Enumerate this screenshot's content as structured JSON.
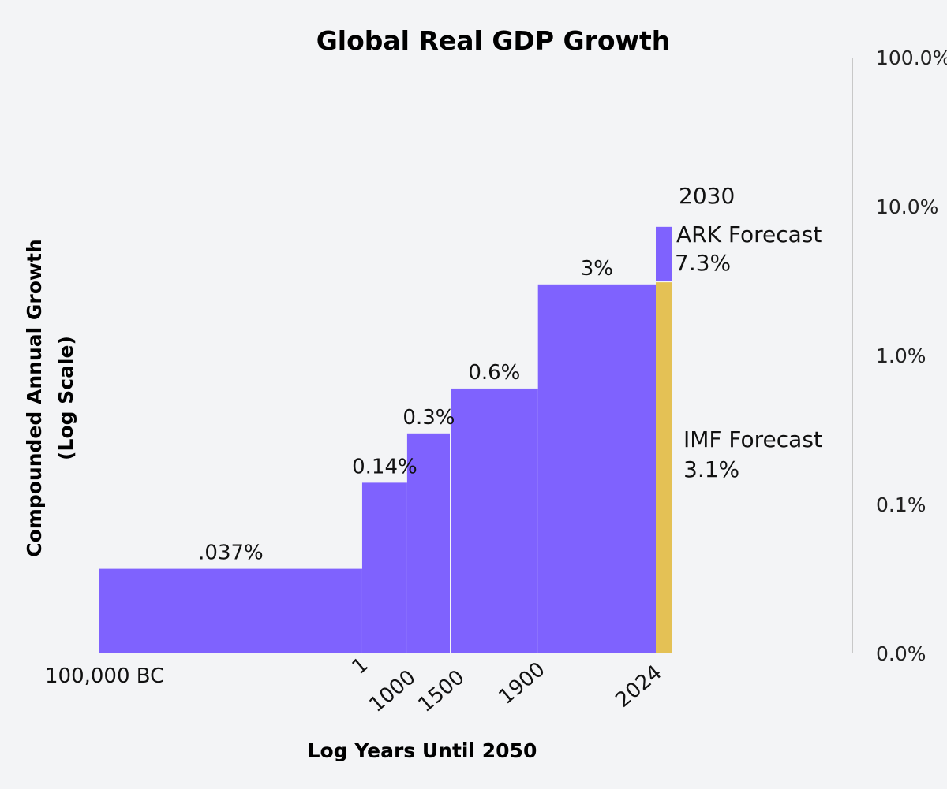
{
  "chart_data": {
    "type": "bar",
    "title": "Global Real GDP Growth",
    "xlabel": "Log Years Until 2050",
    "ylabel": "Compounded Annual Growth",
    "ylabel_sub": "(Log Scale)",
    "y_scale": "log",
    "yticks": [
      "100.0%",
      "10.0%",
      "1.0%",
      "0.1%",
      "0.0%"
    ],
    "yaxis_position": "right",
    "grid": false,
    "legend": "none",
    "x_scale": "log of years until 2050",
    "x_tick_labels": [
      "100,000 BC",
      "1",
      "1000",
      "1500",
      "1900",
      "2024"
    ],
    "series": [
      {
        "bars": [
          {
            "start": "100,000 BC",
            "end": "1",
            "value": 0.037,
            "label": ".037%"
          },
          {
            "start": "1",
            "end": "1000",
            "value": 0.14,
            "label": "0.14%"
          },
          {
            "start": "1000",
            "end": "1500",
            "value": 0.3,
            "label": "0.3%"
          },
          {
            "start": "1500",
            "end": "1900",
            "value": 0.6,
            "label": "0.6%"
          },
          {
            "start": "1900",
            "end": "2024",
            "value": 3,
            "label": "3%"
          }
        ]
      }
    ],
    "forecasts": [
      {
        "start": "2024",
        "end": "2030",
        "value": 3.1,
        "label": "IMF Forecast",
        "value_label": "3.1%"
      },
      {
        "start": "2024",
        "end": "2030",
        "value": 7.3,
        "label": "ARK Forecast",
        "value_label": "7.3%",
        "year_label": "2030"
      }
    ]
  },
  "colors": {
    "background": "#f3f4f6",
    "bar": "#7f62fe",
    "ark_forecast": "#7f62fe",
    "imf_forecast": "#e4c155",
    "axis_line": "#c8c8c8"
  }
}
